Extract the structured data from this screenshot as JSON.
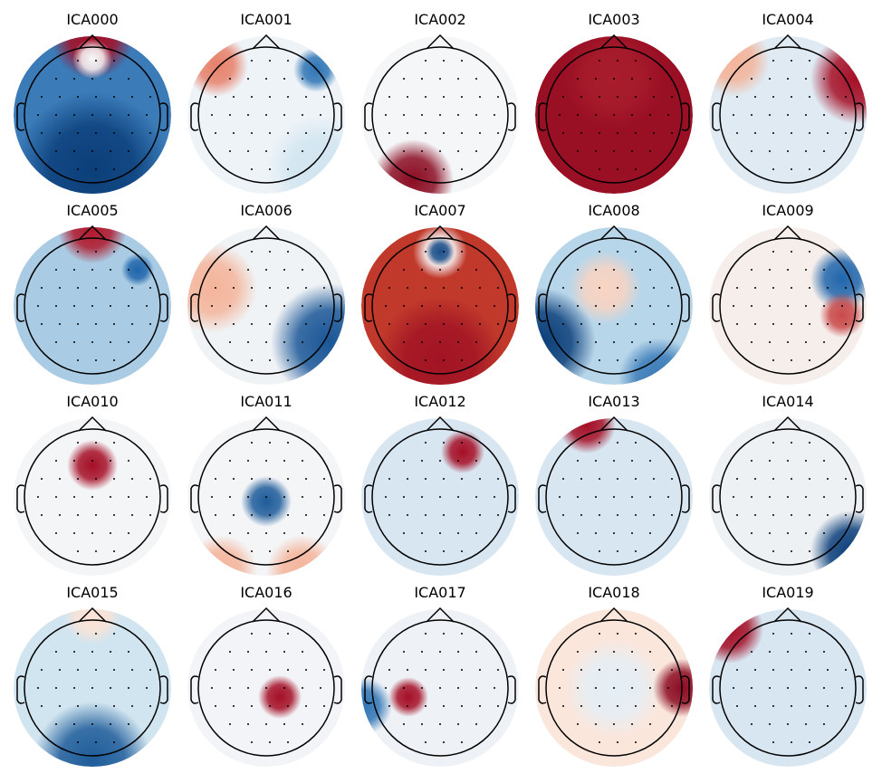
{
  "panels": [
    "ICA000",
    "ICA001",
    "ICA002",
    "ICA003",
    "ICA004",
    "ICA005",
    "ICA006",
    "ICA007",
    "ICA008",
    "ICA009",
    "ICA010",
    "ICA011",
    "ICA012",
    "ICA013",
    "ICA014",
    "ICA015",
    "ICA016",
    "ICA017",
    "ICA018",
    "ICA019"
  ]
}
